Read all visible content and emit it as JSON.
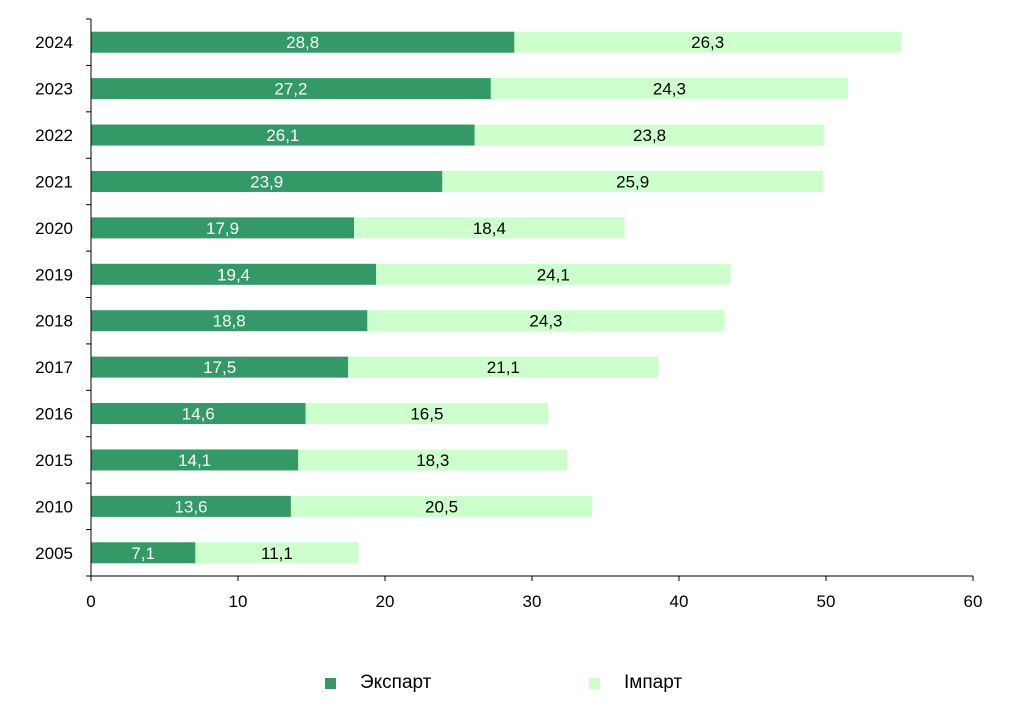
{
  "chart_data": {
    "type": "bar",
    "orientation": "horizontal",
    "stacked": true,
    "categories": [
      "2024",
      "2023",
      "2022",
      "2021",
      "2020",
      "2019",
      "2018",
      "2017",
      "2016",
      "2015",
      "2010",
      "2005"
    ],
    "series": [
      {
        "name": "Экспарт",
        "color": "#339966",
        "label_color": "#ffffff",
        "values": [
          28.8,
          27.2,
          26.1,
          23.9,
          17.9,
          19.4,
          18.8,
          17.5,
          14.6,
          14.1,
          13.6,
          7.1
        ],
        "labels": [
          "28,8",
          "27,2",
          "26,1",
          "23,9",
          "17,9",
          "19,4",
          "18,8",
          "17,5",
          "14,6",
          "14,1",
          "13,6",
          "7,1"
        ]
      },
      {
        "name": "Імпарт",
        "color": "#ccffcc",
        "label_color": "#000000",
        "values": [
          26.3,
          24.3,
          23.8,
          25.9,
          18.4,
          24.1,
          24.3,
          21.1,
          16.5,
          18.3,
          20.5,
          11.1
        ],
        "labels": [
          "26,3",
          "24,3",
          "23,8",
          "25,9",
          "18,4",
          "24,1",
          "24,3",
          "21,1",
          "16,5",
          "18,3",
          "20,5",
          "11,1"
        ]
      }
    ],
    "xlim": [
      0,
      60
    ],
    "xticks": [
      0,
      10,
      20,
      30,
      40,
      50,
      60
    ],
    "xtick_labels": [
      "0",
      "10",
      "20",
      "30",
      "40",
      "50",
      "60"
    ],
    "grid": false,
    "legend_position": "bottom",
    "axis_color": "#000000"
  }
}
